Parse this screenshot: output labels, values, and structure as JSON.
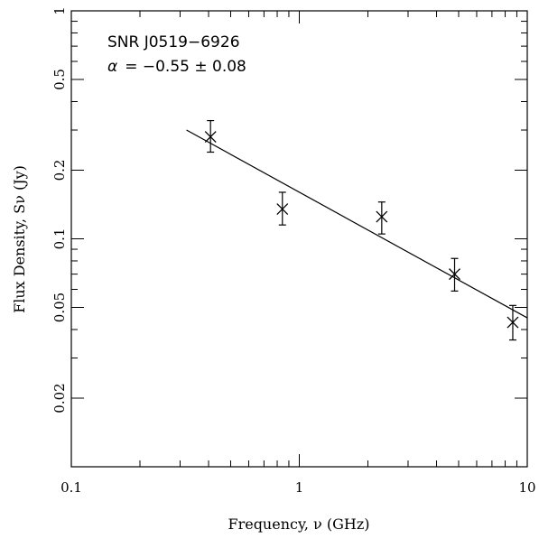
{
  "chart_data": {
    "type": "scatter",
    "xscale": "log",
    "yscale": "log",
    "xlim": [
      0.1,
      10
    ],
    "ylim": [
      0.01,
      1
    ],
    "xlabel": "Frequency, ν (GHz)",
    "ylabel": "Flux Density, Sν (Jy)",
    "x_ticks": [
      {
        "value": 0.1,
        "label": "0.1"
      },
      {
        "value": 1,
        "label": "1"
      },
      {
        "value": 10,
        "label": "10"
      }
    ],
    "y_ticks": [
      {
        "value": 0.02,
        "label": "0.02"
      },
      {
        "value": 0.05,
        "label": "0.05"
      },
      {
        "value": 0.1,
        "label": "0.1"
      },
      {
        "value": 0.2,
        "label": "0.2"
      },
      {
        "value": 0.5,
        "label": "0.5"
      },
      {
        "value": 1,
        "label": "1"
      }
    ],
    "points": [
      {
        "x": 0.408,
        "y": 0.28,
        "ylow": 0.24,
        "yhigh": 0.33
      },
      {
        "x": 0.843,
        "y": 0.135,
        "ylow": 0.115,
        "yhigh": 0.16
      },
      {
        "x": 2.3,
        "y": 0.125,
        "ylow": 0.105,
        "yhigh": 0.145
      },
      {
        "x": 4.8,
        "y": 0.07,
        "ylow": 0.059,
        "yhigh": 0.082
      },
      {
        "x": 8.64,
        "y": 0.043,
        "ylow": 0.036,
        "yhigh": 0.051
      }
    ],
    "fit": {
      "x": [
        0.32,
        10
      ],
      "y": [
        0.3,
        0.045
      ]
    },
    "annotations": {
      "source": "SNR J0519−6926",
      "alpha_symbol": "α",
      "alpha_text": "=  −0.55 ±   0.08"
    }
  }
}
